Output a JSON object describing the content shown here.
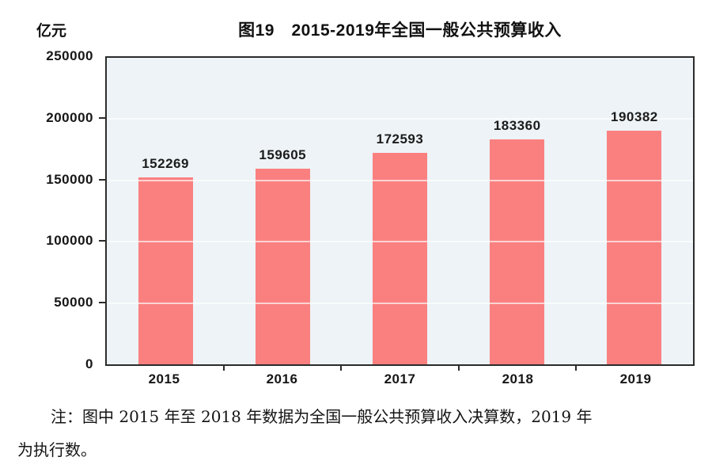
{
  "chart_data": {
    "type": "bar",
    "title": "图19　2015-2019年全国一般公共预算收入",
    "unit_label": "亿元",
    "categories": [
      "2015",
      "2016",
      "2017",
      "2018",
      "2019"
    ],
    "values": [
      152269,
      159605,
      172593,
      183360,
      190382
    ],
    "xlabel": "",
    "ylabel": "亿元",
    "ylim": [
      0,
      250000
    ],
    "yticks": [
      0,
      50000,
      100000,
      150000,
      200000,
      250000
    ],
    "ytick_labels": [
      "0",
      "50000",
      "100000",
      "150000",
      "200000",
      "250000"
    ],
    "grid": true,
    "legend": "none",
    "data_labels_shown": true,
    "colors": {
      "bar_fill": "#FA8080",
      "plot_background": "#EDF3F6",
      "plot_border": "#2b2b2b",
      "gridline": "rgba(255,255,255,0.65)",
      "text": "#161616"
    }
  },
  "note": {
    "lines": [
      "注：图中 2015 年至 2018 年数据为全国一般公共预算收入决算数，2019 年",
      "为执行数。"
    ]
  }
}
